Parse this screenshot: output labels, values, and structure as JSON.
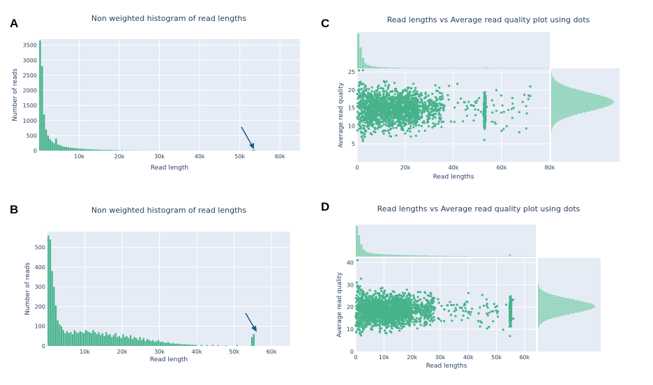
{
  "colors": {
    "bg": "#e5ecf6",
    "grid": "#ffffff",
    "bar": "#47b38b",
    "marginal": "#8fd3b8",
    "arrow": "#1b5a80",
    "text": "#2a3f5f"
  },
  "chart_data": [
    {
      "panel": "A",
      "type": "bar",
      "title": "Non weighted histogram of read lengths",
      "xlabel": "Read length",
      "ylabel": "Number of reads",
      "xlim": [
        0,
        65000
      ],
      "ylim": [
        0,
        3700
      ],
      "xticks": [
        10000,
        20000,
        30000,
        40000,
        50000,
        60000
      ],
      "xtick_labels": [
        "10k",
        "20k",
        "30k",
        "40k",
        "50k",
        "60k"
      ],
      "yticks": [
        0,
        500,
        1000,
        1500,
        2000,
        2500,
        3000,
        3500
      ],
      "ytick_labels": [
        "0",
        "500",
        "1000",
        "1500",
        "2000",
        "2500",
        "3000",
        "3500"
      ],
      "bin_width": 500,
      "x": [
        250,
        750,
        1250,
        1750,
        2250,
        2750,
        3250,
        3750,
        4250,
        4750,
        5250,
        5750,
        6250,
        6750,
        7250,
        7750,
        8250,
        8750,
        9250,
        9750,
        10250,
        10750,
        11250,
        11750,
        12250,
        12750,
        13250,
        13750,
        14250,
        14750,
        15250,
        15750,
        16250,
        16750,
        17250,
        17750,
        18250,
        18750,
        19250,
        19750,
        20750,
        21750,
        22750,
        23750,
        24750,
        26750,
        28750,
        30750,
        33750,
        36750,
        53250,
        53750
      ],
      "values": [
        3650,
        2800,
        1200,
        700,
        500,
        380,
        300,
        250,
        400,
        200,
        180,
        150,
        130,
        120,
        110,
        100,
        90,
        85,
        80,
        70,
        65,
        60,
        55,
        50,
        48,
        45,
        40,
        38,
        35,
        32,
        30,
        28,
        26,
        25,
        24,
        22,
        20,
        18,
        17,
        16,
        14,
        12,
        11,
        10,
        9,
        7,
        6,
        5,
        4,
        3,
        25,
        20
      ],
      "annotation": {
        "type": "arrow",
        "target_x": 53500,
        "target_y": 40
      }
    },
    {
      "panel": "B",
      "type": "bar",
      "title": "Non weighted histogram of read lengths",
      "xlabel": "Read length",
      "ylabel": "Number of reads",
      "xlim": [
        0,
        65000
      ],
      "ylim": [
        0,
        580
      ],
      "xticks": [
        10000,
        20000,
        30000,
        40000,
        50000,
        60000
      ],
      "xtick_labels": [
        "10k",
        "20k",
        "30k",
        "40k",
        "50k",
        "60k"
      ],
      "yticks": [
        0,
        100,
        200,
        300,
        400,
        500
      ],
      "ytick_labels": [
        "0",
        "100",
        "200",
        "300",
        "400",
        "500"
      ],
      "bin_width": 500,
      "x": [
        250,
        750,
        1250,
        1750,
        2250,
        2750,
        3250,
        3750,
        4250,
        4750,
        5250,
        5750,
        6250,
        6750,
        7250,
        7750,
        8250,
        8750,
        9250,
        9750,
        10250,
        10750,
        11250,
        11750,
        12250,
        12750,
        13250,
        13750,
        14250,
        14750,
        15250,
        15750,
        16250,
        16750,
        17250,
        17750,
        18250,
        18750,
        19250,
        19750,
        20250,
        20750,
        21250,
        21750,
        22250,
        22750,
        23250,
        23750,
        24250,
        24750,
        25250,
        25750,
        26250,
        26750,
        27250,
        27750,
        28250,
        28750,
        29250,
        29750,
        30250,
        30750,
        31250,
        31750,
        32250,
        32750,
        33250,
        33750,
        34250,
        34750,
        35250,
        35750,
        36250,
        36750,
        37250,
        37750,
        38250,
        38750,
        39250,
        39750,
        41250,
        42750,
        44250,
        45750,
        47750,
        50750,
        54750,
        55250
      ],
      "values": [
        560,
        540,
        380,
        300,
        205,
        130,
        110,
        100,
        80,
        65,
        75,
        65,
        70,
        60,
        80,
        70,
        65,
        75,
        70,
        65,
        80,
        75,
        70,
        65,
        80,
        70,
        60,
        70,
        55,
        65,
        50,
        70,
        55,
        60,
        45,
        55,
        65,
        45,
        50,
        40,
        60,
        45,
        50,
        40,
        55,
        35,
        45,
        40,
        30,
        45,
        30,
        40,
        25,
        35,
        30,
        25,
        30,
        20,
        25,
        30,
        20,
        22,
        18,
        15,
        20,
        15,
        12,
        15,
        10,
        12,
        10,
        9,
        8,
        10,
        7,
        8,
        6,
        7,
        5,
        6,
        5,
        4,
        6,
        4,
        3,
        5,
        45,
        60
      ],
      "annotation": {
        "type": "arrow",
        "target_x": 55000,
        "target_y": 70
      }
    },
    {
      "panel": "C",
      "type": "scatter",
      "title": "Read lengths vs Average read quality plot using dots",
      "xlabel": "Read lengths",
      "ylabel": "Average read quality",
      "xlim": [
        0,
        80000
      ],
      "ylim": [
        0,
        26
      ],
      "xticks": [
        0,
        20000,
        40000,
        60000,
        80000
      ],
      "xtick_labels": [
        "0",
        "20k",
        "40k",
        "60k",
        "80k"
      ],
      "yticks": [
        5,
        10,
        15,
        20,
        25
      ],
      "ytick_labels": [
        "5",
        "10",
        "15",
        "20",
        "25"
      ],
      "points": {
        "model": "scatter-cloud",
        "count": 1900,
        "seed": 7,
        "x_max": 72000,
        "stripe_x": 53000,
        "y_center": 15.5,
        "y_spread": 2.4
      },
      "marginal_x": {
        "type": "histogram",
        "bin_width": 1000,
        "values": [
          100,
          60,
          30,
          15,
          10,
          8,
          6,
          5,
          4,
          4,
          3,
          3,
          3,
          2,
          2,
          2,
          2,
          2,
          1,
          1,
          1,
          1,
          1,
          1,
          1,
          1,
          1,
          1,
          1,
          1,
          1,
          1,
          1,
          1,
          1,
          1,
          1,
          1,
          1,
          1,
          1,
          1,
          1,
          1,
          1,
          1,
          1,
          1,
          1,
          1,
          1,
          1,
          1,
          3,
          1,
          1,
          1,
          1,
          1,
          1,
          1,
          1,
          1,
          1,
          1,
          1,
          1,
          1,
          1,
          1,
          1,
          1,
          1,
          1,
          1,
          1,
          1,
          1,
          1,
          1
        ]
      },
      "marginal_y": {
        "type": "histogram",
        "center": 16.5,
        "sd": 2.6,
        "range": [
          3,
          25
        ]
      }
    },
    {
      "panel": "D",
      "type": "scatter",
      "title": "Read lengths vs Average read quality plot using dots",
      "xlabel": "Read lengths",
      "ylabel": "Average read quality",
      "xlim": [
        0,
        64000
      ],
      "ylim": [
        0,
        42
      ],
      "xticks": [
        0,
        10000,
        20000,
        30000,
        40000,
        50000,
        60000
      ],
      "xtick_labels": [
        "0",
        "10k",
        "20k",
        "30k",
        "40k",
        "50k",
        "60k"
      ],
      "yticks": [
        0,
        10,
        20,
        30,
        40
      ],
      "ytick_labels": [
        "0",
        "10",
        "20",
        "30",
        "40"
      ],
      "points": {
        "model": "scatter-cloud",
        "count": 2400,
        "seed": 13,
        "x_max": 56000,
        "stripe_x": 55000,
        "y_center": 19.5,
        "y_spread": 3.2
      },
      "marginal_x": {
        "type": "histogram",
        "bin_width": 800,
        "values": [
          100,
          70,
          40,
          25,
          18,
          14,
          12,
          11,
          10,
          9,
          9,
          8,
          8,
          7,
          7,
          7,
          6,
          6,
          6,
          6,
          5,
          5,
          5,
          5,
          5,
          5,
          4,
          4,
          4,
          4,
          4,
          4,
          3,
          3,
          3,
          3,
          3,
          3,
          3,
          3,
          2,
          2,
          2,
          2,
          2,
          2,
          2,
          2,
          2,
          2,
          1,
          1,
          1,
          1,
          1,
          1,
          1,
          1,
          1,
          1,
          1,
          1,
          1,
          1,
          1,
          1,
          1,
          1,
          8,
          1,
          1,
          1,
          1,
          1,
          1,
          1,
          1,
          1,
          1,
          1
        ]
      },
      "marginal_y": {
        "type": "histogram",
        "center": 20,
        "sd": 3.2,
        "range": [
          10,
          42
        ]
      }
    }
  ]
}
